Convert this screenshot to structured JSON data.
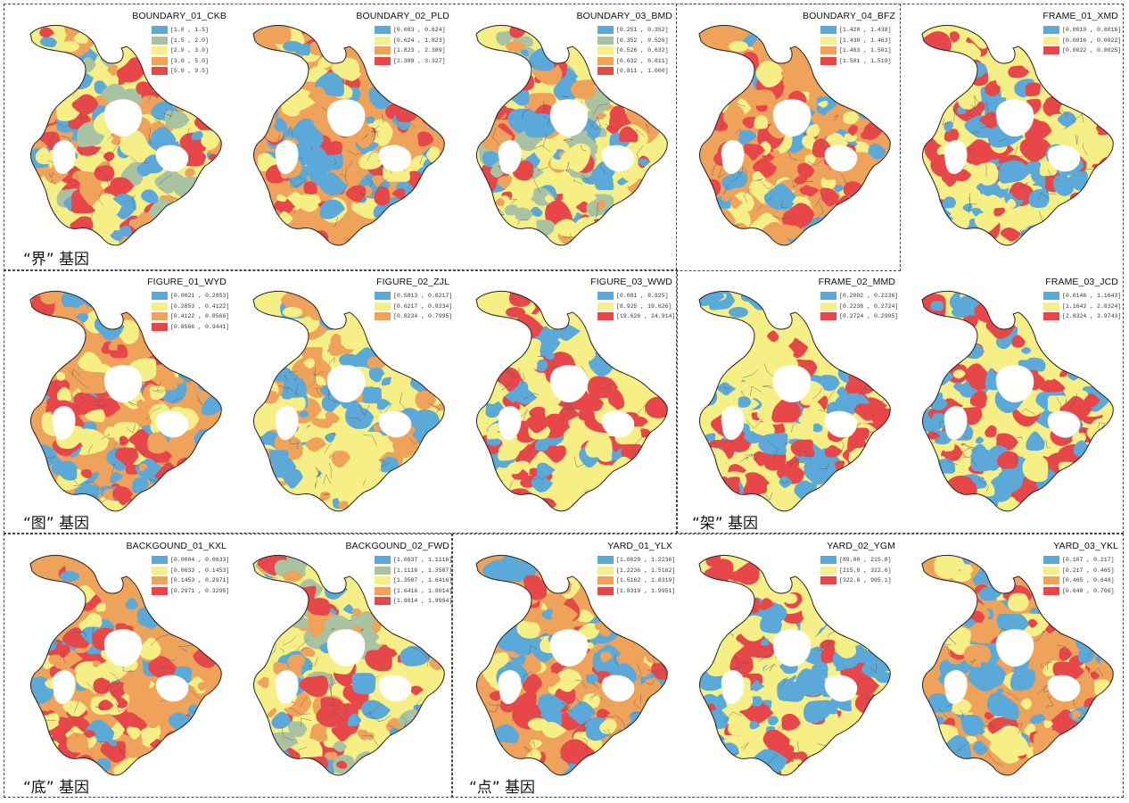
{
  "groups": [
    {
      "id": "boundary",
      "label": "“界” 基因"
    },
    {
      "id": "figure",
      "label": "“图” 基因"
    },
    {
      "id": "frame",
      "label": "“架” 基因"
    },
    {
      "id": "background",
      "label": "“底” 基因"
    },
    {
      "id": "yard",
      "label": "“点” 基因"
    }
  ],
  "colors": {
    "blue": "#5aa9d8",
    "sage": "#a9c3a2",
    "yellow": "#f6ef86",
    "orange": "#efa25a",
    "red": "#e8474a",
    "outline": "#222222",
    "lake": "#ffffff"
  },
  "panels": [
    {
      "title": "BOUNDARY_01_CKB",
      "legend": [
        {
          "color": "blue",
          "label": "[1.0 , 1.5]"
        },
        {
          "color": "sage",
          "label": "[1.5 , 2.0]"
        },
        {
          "color": "yellow",
          "label": "[2.0 , 3.0]"
        },
        {
          "color": "orange",
          "label": "[3.0 , 5.0]"
        },
        {
          "color": "red",
          "label": "[5.0 , 9.5]"
        }
      ]
    },
    {
      "title": "BOUNDARY_02_PLD",
      "legend": [
        {
          "color": "blue",
          "label": "[0.003 , 0.624]"
        },
        {
          "color": "yellow",
          "label": "[0.624 , 1.823]"
        },
        {
          "color": "orange",
          "label": "[1.823 , 2.389]"
        },
        {
          "color": "red",
          "label": "[2.389 , 3.327]"
        }
      ]
    },
    {
      "title": "BOUNDARY_03_BMD",
      "legend": [
        {
          "color": "blue",
          "label": "[0.251 , 0.352]"
        },
        {
          "color": "sage",
          "label": "[0.352 , 0.526]"
        },
        {
          "color": "yellow",
          "label": "[0.526 , 0.632]"
        },
        {
          "color": "orange",
          "label": "[0.632 , 0.811]"
        },
        {
          "color": "red",
          "label": "[0.811 , 1.000]"
        }
      ]
    },
    {
      "title": "BOUNDARY_04_BFZ",
      "legend": [
        {
          "color": "blue",
          "label": "[1.420 , 1.438]"
        },
        {
          "color": "yellow",
          "label": "[1.438 , 1.463]"
        },
        {
          "color": "orange",
          "label": "[1.463 , 1.501]"
        },
        {
          "color": "red",
          "label": "[1.501 , 1.519]"
        }
      ]
    },
    {
      "title": "FRAME_01_XMD",
      "legend": [
        {
          "color": "blue",
          "label": "[0.0010 , 0.0016]"
        },
        {
          "color": "yellow",
          "label": "[0.0016 , 0.0022]"
        },
        {
          "color": "red",
          "label": "[0.0022 , 0.0025]"
        }
      ]
    },
    {
      "title": "FIGURE_01_WYD",
      "legend": [
        {
          "color": "blue",
          "label": "[0.0021 , 0.2853]"
        },
        {
          "color": "yellow",
          "label": "[0.2853 , 0.4122]"
        },
        {
          "color": "orange",
          "label": "[0.4122 , 0.8566]"
        },
        {
          "color": "red",
          "label": "[0.8566 , 0.9441]"
        }
      ]
    },
    {
      "title": "FIGURE_02_ZJL",
      "legend": [
        {
          "color": "blue",
          "label": "[0.5813 , 0.6217]"
        },
        {
          "color": "yellow",
          "label": "[0.6217 , 0.8234]"
        },
        {
          "color": "orange",
          "label": "[0.8234 , 0.7995]"
        }
      ]
    },
    {
      "title": "FIGURE_03_WWD",
      "legend": [
        {
          "color": "blue",
          "label": "[0.081 , 8.925]"
        },
        {
          "color": "yellow",
          "label": "[8.925 , 19.626]"
        },
        {
          "color": "red",
          "label": "[19.626 , 24.914]"
        }
      ]
    },
    {
      "title": "FRAME_02_MMD",
      "legend": [
        {
          "color": "blue",
          "label": "[0.2002 , 0.2236]"
        },
        {
          "color": "yellow",
          "label": "[0.2236 , 0.2724]"
        },
        {
          "color": "red",
          "label": "[0.2724 , 0.2995]"
        }
      ]
    },
    {
      "title": "FRAME_03_JCD",
      "legend": [
        {
          "color": "blue",
          "label": "[0.0146 , 1.1643]"
        },
        {
          "color": "yellow",
          "label": "[1.1643 , 2.8324]"
        },
        {
          "color": "red",
          "label": "[2.8324 , 3.9743]"
        }
      ]
    },
    {
      "title": "BACKGOUND_01_KXL",
      "legend": [
        {
          "color": "blue",
          "label": "[0.0004 , 0.0633]"
        },
        {
          "color": "yellow",
          "label": "[0.0633 , 0.1453]"
        },
        {
          "color": "orange",
          "label": "[0.1453 , 0.2971]"
        },
        {
          "color": "red",
          "label": "[0.2971 , 0.3295]"
        }
      ]
    },
    {
      "title": "BACKGOUND_02_FWD",
      "legend": [
        {
          "color": "blue",
          "label": "[1.0037 , 1.1116]"
        },
        {
          "color": "sage",
          "label": "[1.1116 , 1.3587]"
        },
        {
          "color": "yellow",
          "label": "[1.3587 , 1.6416]"
        },
        {
          "color": "orange",
          "label": "[1.6416 , 1.9014]"
        },
        {
          "color": "red",
          "label": "[1.9014 , 1.9994]"
        }
      ]
    },
    {
      "title": "YARD_01_YLX",
      "legend": [
        {
          "color": "blue",
          "label": "[1.0029 , 1.2236]"
        },
        {
          "color": "yellow",
          "label": "[1.2236 , 1.5162]"
        },
        {
          "color": "orange",
          "label": "[1.5162 , 1.8319]"
        },
        {
          "color": "red",
          "label": "[1.8319 , 1.9951]"
        }
      ]
    },
    {
      "title": "YARD_02_YGM",
      "legend": [
        {
          "color": "blue",
          "label": "[89.00 , 215.8]"
        },
        {
          "color": "yellow",
          "label": "[215.8 , 322.6]"
        },
        {
          "color": "red",
          "label": "[322.6 , 995.1]"
        }
      ]
    },
    {
      "title": "YARD_03_YKL",
      "legend": [
        {
          "color": "blue",
          "label": "[0.107 , 0.217]"
        },
        {
          "color": "yellow",
          "label": "[0.217 , 0.465]"
        },
        {
          "color": "orange",
          "label": "[0.465 , 0.648]"
        },
        {
          "color": "red",
          "label": "[0.648 , 0.766]"
        }
      ]
    }
  ]
}
